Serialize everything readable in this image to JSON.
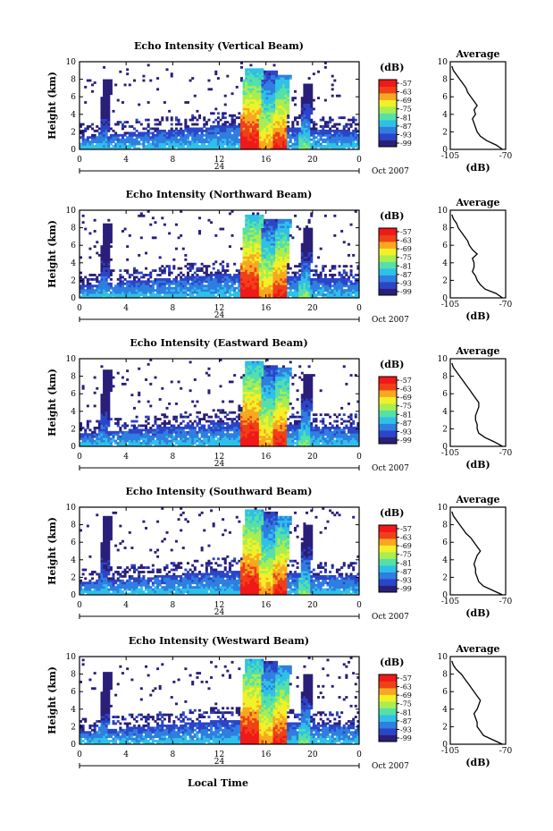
{
  "colors": {
    "colormap": [
      "#2a1f78",
      "#2c45c8",
      "#2f7ee0",
      "#2fc0e8",
      "#55e0a8",
      "#a8ee50",
      "#f2f028",
      "#f8a820",
      "#f04018",
      "#f01818"
    ]
  },
  "shared": {
    "time_ticks": [
      "0",
      "4",
      "8",
      "12",
      "16",
      "20",
      "0"
    ],
    "date_bar_label": "24",
    "date_label": "Oct 2007",
    "height_ticks": [
      "0",
      "2",
      "4",
      "6",
      "8",
      "10"
    ],
    "ylabel": "Height (km)",
    "colorbar_unit": "(dB)",
    "colorbar_labels": [
      "-57",
      "-63",
      "-69",
      "-75",
      "-81",
      "-87",
      "-93",
      "-99"
    ],
    "avg_title": "Average",
    "avg_xticks": [
      "-105",
      "-70"
    ],
    "avg_xlabel": "(dB)",
    "xlabel": "Local Time"
  },
  "chart_data": [
    {
      "type": "heatmap",
      "title": "Echo Intensity (Vertical Beam)",
      "x_range_hours": [
        0,
        24
      ],
      "y_range_km": [
        0,
        10
      ],
      "color_range_db": [
        -99,
        -57
      ],
      "events": [
        {
          "t_start": 1.5,
          "t_end": 2.3,
          "top_km": 7.8,
          "peak_db": -84
        },
        {
          "t_start": 13.6,
          "t_end": 15.2,
          "top_km": 9.2,
          "peak_db": -57
        },
        {
          "t_start": 15.2,
          "t_end": 16.4,
          "top_km": 8.8,
          "peak_db": -66
        },
        {
          "t_start": 16.4,
          "t_end": 17.6,
          "top_km": 8.5,
          "peak_db": -60
        },
        {
          "t_start": 18.7,
          "t_end": 19.6,
          "top_km": 7.5,
          "peak_db": -78
        }
      ],
      "average_profile": {
        "heights_km": [
          0,
          0.5,
          1,
          1.5,
          2,
          2.5,
          3,
          3.5,
          4,
          4.5,
          5,
          5.5,
          6,
          6.5,
          7,
          7.5,
          8,
          8.5,
          9,
          9.5
        ],
        "values_db": [
          -72,
          -76,
          -82,
          -86,
          -88,
          -89,
          -90,
          -91,
          -89,
          -90,
          -88,
          -90,
          -92,
          -94,
          -95,
          -97,
          -99,
          -101,
          -103,
          -104
        ],
        "xlim": [
          -105,
          -70
        ]
      }
    },
    {
      "type": "heatmap",
      "title": "Echo Intensity (Northward Beam)",
      "x_range_hours": [
        0,
        24
      ],
      "y_range_km": [
        0,
        10
      ],
      "color_range_db": [
        -99,
        -57
      ],
      "events": [
        {
          "t_start": 1.5,
          "t_end": 2.3,
          "top_km": 8.5,
          "peak_db": -84
        },
        {
          "t_start": 13.6,
          "t_end": 15.2,
          "top_km": 9.5,
          "peak_db": -57
        },
        {
          "t_start": 15.2,
          "t_end": 16.4,
          "top_km": 9.0,
          "peak_db": -66
        },
        {
          "t_start": 16.4,
          "t_end": 17.6,
          "top_km": 8.8,
          "peak_db": -60
        },
        {
          "t_start": 18.7,
          "t_end": 19.6,
          "top_km": 7.8,
          "peak_db": -78
        }
      ],
      "average_profile": {
        "heights_km": [
          0,
          0.5,
          1,
          1.5,
          2,
          2.5,
          3,
          3.5,
          4,
          4.5,
          5,
          5.5,
          6,
          6.5,
          7,
          7.5,
          8,
          8.5,
          9,
          9.5
        ],
        "values_db": [
          -72,
          -76,
          -83,
          -86,
          -88,
          -89,
          -91,
          -90,
          -90,
          -91,
          -88,
          -91,
          -93,
          -94,
          -96,
          -98,
          -100,
          -101,
          -103,
          -104
        ],
        "xlim": [
          -105,
          -70
        ]
      }
    },
    {
      "type": "heatmap",
      "title": "Echo Intensity (Eastward Beam)",
      "x_range_hours": [
        0,
        24
      ],
      "y_range_km": [
        0,
        10
      ],
      "color_range_db": [
        -99,
        -57
      ],
      "events": [
        {
          "t_start": 1.5,
          "t_end": 2.3,
          "top_km": 8.6,
          "peak_db": -84
        },
        {
          "t_start": 13.6,
          "t_end": 15.2,
          "top_km": 9.6,
          "peak_db": -57
        },
        {
          "t_start": 15.2,
          "t_end": 16.4,
          "top_km": 9.2,
          "peak_db": -66
        },
        {
          "t_start": 16.4,
          "t_end": 17.6,
          "top_km": 8.8,
          "peak_db": -60
        },
        {
          "t_start": 18.7,
          "t_end": 19.6,
          "top_km": 8.2,
          "peak_db": -78
        }
      ],
      "average_profile": {
        "heights_km": [
          0,
          0.5,
          1,
          1.5,
          2,
          2.5,
          3,
          3.5,
          4,
          4.5,
          5,
          5.5,
          6,
          6.5,
          7,
          7.5,
          8,
          8.5,
          9,
          9.5
        ],
        "values_db": [
          -72,
          -77,
          -83,
          -87,
          -88,
          -88,
          -89,
          -89,
          -88,
          -87,
          -87,
          -89,
          -91,
          -93,
          -95,
          -97,
          -99,
          -101,
          -103,
          -104
        ],
        "xlim": [
          -105,
          -70
        ]
      }
    },
    {
      "type": "heatmap",
      "title": "Echo Intensity (Southward Beam)",
      "x_range_hours": [
        0,
        24
      ],
      "y_range_km": [
        0,
        10
      ],
      "color_range_db": [
        -99,
        -57
      ],
      "events": [
        {
          "t_start": 1.5,
          "t_end": 2.3,
          "top_km": 8.8,
          "peak_db": -84
        },
        {
          "t_start": 13.6,
          "t_end": 15.2,
          "top_km": 9.6,
          "peak_db": -57
        },
        {
          "t_start": 15.2,
          "t_end": 16.4,
          "top_km": 9.3,
          "peak_db": -66
        },
        {
          "t_start": 16.4,
          "t_end": 17.6,
          "top_km": 8.8,
          "peak_db": -60
        },
        {
          "t_start": 18.7,
          "t_end": 19.6,
          "top_km": 8.0,
          "peak_db": -78
        }
      ],
      "average_profile": {
        "heights_km": [
          0,
          0.5,
          1,
          1.5,
          2,
          2.5,
          3,
          3.5,
          4,
          4.5,
          5,
          5.5,
          6,
          6.5,
          7,
          7.5,
          8,
          8.5,
          9,
          9.5
        ],
        "values_db": [
          -72,
          -78,
          -84,
          -87,
          -88,
          -89,
          -89,
          -90,
          -89,
          -88,
          -86,
          -88,
          -90,
          -92,
          -95,
          -97,
          -99,
          -101,
          -103,
          -104
        ],
        "xlim": [
          -105,
          -70
        ]
      }
    },
    {
      "type": "heatmap",
      "title": "Echo Intensity (Westward Beam)",
      "x_range_hours": [
        0,
        24
      ],
      "y_range_km": [
        0,
        10
      ],
      "color_range_db": [
        -99,
        -57
      ],
      "events": [
        {
          "t_start": 1.5,
          "t_end": 2.3,
          "top_km": 8.2,
          "peak_db": -84
        },
        {
          "t_start": 13.6,
          "t_end": 15.2,
          "top_km": 9.6,
          "peak_db": -57
        },
        {
          "t_start": 15.2,
          "t_end": 16.4,
          "top_km": 9.3,
          "peak_db": -66
        },
        {
          "t_start": 16.4,
          "t_end": 17.6,
          "top_km": 8.8,
          "peak_db": -60
        },
        {
          "t_start": 18.7,
          "t_end": 19.6,
          "top_km": 8.0,
          "peak_db": -78
        }
      ],
      "average_profile": {
        "heights_km": [
          0,
          0.5,
          1,
          1.5,
          2,
          2.5,
          3,
          3.5,
          4,
          4.5,
          5,
          5.5,
          6,
          6.5,
          7,
          7.5,
          8,
          8.5,
          9,
          9.5
        ],
        "values_db": [
          -72,
          -78,
          -84,
          -86,
          -88,
          -88,
          -89,
          -90,
          -88,
          -87,
          -86,
          -88,
          -90,
          -92,
          -94,
          -96,
          -98,
          -101,
          -103,
          -104
        ],
        "xlim": [
          -105,
          -70
        ]
      }
    }
  ]
}
